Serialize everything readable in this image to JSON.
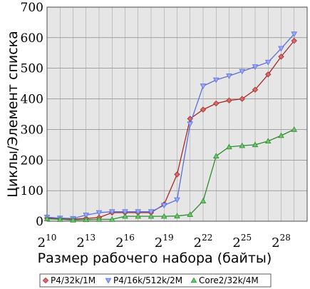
{
  "chart_data": {
    "type": "line",
    "xlabel": "Размер рабочего набора (байты)",
    "ylabel": "Циклы/Элемент списка",
    "xscale": "log2",
    "xlim": [
      1024,
      1073741824
    ],
    "ylim": [
      0,
      700
    ],
    "y_ticks": [
      0,
      100,
      200,
      300,
      400,
      500,
      600,
      700
    ],
    "x_ticks": [
      {
        "base": "2",
        "exp": "10",
        "value": 1024
      },
      {
        "base": "2",
        "exp": "13",
        "value": 8192
      },
      {
        "base": "2",
        "exp": "16",
        "value": 65536
      },
      {
        "base": "2",
        "exp": "19",
        "value": 524288
      },
      {
        "base": "2",
        "exp": "22",
        "value": 4194304
      },
      {
        "base": "2",
        "exp": "25",
        "value": 33554432
      },
      {
        "base": "2",
        "exp": "28",
        "value": 268435456
      }
    ],
    "grid": true,
    "legend_position": "bottom",
    "x": [
      1024,
      2048,
      4096,
      8192,
      16384,
      32768,
      65536,
      131072,
      262144,
      524288,
      1048576,
      2097152,
      4194304,
      8388608,
      16777216,
      33554432,
      67108864,
      134217728,
      268435456,
      536870912
    ],
    "series": [
      {
        "name": "P4/32k/1M",
        "color": "#a52a2a",
        "fill": "#d46a6a",
        "marker": "diamond",
        "values": [
          10,
          8,
          7,
          9,
          12,
          28,
          28,
          28,
          28,
          55,
          153,
          335,
          365,
          385,
          395,
          400,
          430,
          480,
          538,
          590
        ]
      },
      {
        "name": "P4/16k/512k/2M",
        "color": "#5a6fd8",
        "fill": "#9aa8ff",
        "marker": "triangle-down",
        "values": [
          13,
          10,
          9,
          20,
          28,
          31,
          31,
          31,
          31,
          52,
          70,
          318,
          442,
          462,
          475,
          490,
          505,
          520,
          565,
          612
        ]
      },
      {
        "name": "Core2/32k/4M",
        "color": "#2e8b2e",
        "fill": "#6cc46c",
        "marker": "triangle-up",
        "values": [
          8,
          6,
          4,
          5,
          6,
          6,
          16,
          16,
          16,
          16,
          17,
          22,
          66,
          213,
          243,
          247,
          250,
          262,
          280,
          300
        ]
      }
    ]
  }
}
